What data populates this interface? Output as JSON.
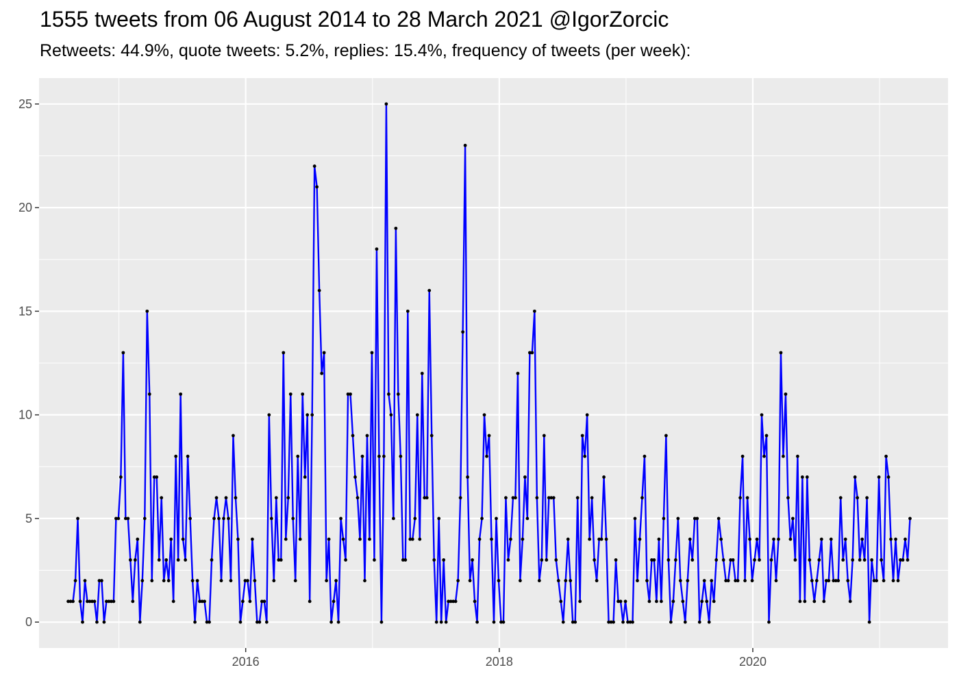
{
  "title": "1555 tweets from 06 August 2014 to 28 March 2021 @IgorZorcic",
  "subtitle": "Retweets: 44.9%, quote tweets: 5.2%, replies: 15.4%, frequency of tweets (per week):",
  "colors": {
    "panel": "#ebebeb",
    "grid": "#ffffff",
    "line": "#0000ff",
    "point": "#000000",
    "tick_text": "#4d4d4d"
  },
  "chart_data": {
    "type": "line",
    "title": "1555 tweets from 06 August 2014 to 28 March 2021 @IgorZorcic",
    "subtitle": "Retweets: 44.9%, quote tweets: 5.2%, replies: 15.4%, frequency of tweets (per week):",
    "xlabel": "",
    "ylabel": "",
    "xlim": [
      2014.37,
      2021.54
    ],
    "ylim": [
      -1.25,
      26.25
    ],
    "x_ticks": [
      2016,
      2018,
      2020
    ],
    "x_tick_labels": [
      "2016",
      "2018",
      "2020"
    ],
    "x_minor_ticks": [
      2015,
      2017,
      2019,
      2021
    ],
    "y_ticks": [
      0,
      5,
      10,
      15,
      20,
      25
    ],
    "y_tick_labels": [
      "0",
      "5",
      "10",
      "15",
      "20",
      "25"
    ],
    "grid": true,
    "x_start": 2014.6,
    "x_end": 2021.24,
    "series": [
      {
        "values": [
          1,
          1,
          1,
          2,
          5,
          1,
          0,
          2,
          1,
          1,
          1,
          1,
          0,
          2,
          2,
          0,
          1,
          1,
          1,
          1,
          5,
          5,
          7,
          13,
          5,
          5,
          3,
          1,
          3,
          4,
          0,
          2,
          5,
          15,
          11,
          2,
          7,
          7,
          3,
          6,
          2,
          3,
          2,
          4,
          1,
          8,
          3,
          11,
          4,
          3,
          8,
          5,
          2,
          0,
          2,
          1,
          1,
          1,
          0,
          0,
          3,
          5,
          6,
          5,
          2,
          5,
          6,
          5,
          2,
          9,
          6,
          4,
          0,
          1,
          2,
          2,
          1,
          4,
          2,
          0,
          0,
          1,
          1,
          0,
          10,
          5,
          2,
          6,
          3,
          3,
          13,
          4,
          6,
          11,
          5,
          2,
          8,
          4,
          11,
          7,
          10,
          1,
          10,
          22,
          21,
          16,
          12,
          13,
          2,
          4,
          0,
          1,
          2,
          0,
          5,
          4,
          3,
          11,
          11,
          9,
          7,
          6,
          4,
          8,
          2,
          9,
          4,
          13,
          3,
          18,
          8,
          0,
          8,
          25,
          11,
          10,
          5,
          19,
          11,
          8,
          3,
          3,
          15,
          4,
          4,
          5,
          10,
          4,
          12,
          6,
          6,
          16,
          9,
          3,
          0,
          5,
          0,
          3,
          0,
          1,
          1,
          1,
          1,
          2,
          6,
          14,
          23,
          7,
          2,
          3,
          1,
          0,
          4,
          5,
          10,
          8,
          9,
          4,
          0,
          5,
          2,
          0,
          0,
          6,
          3,
          4,
          6,
          6,
          12,
          2,
          4,
          7,
          5,
          13,
          13,
          15,
          6,
          2,
          3,
          9,
          3,
          6,
          6,
          6,
          3,
          2,
          1,
          0,
          2,
          4,
          2,
          0,
          0,
          6,
          1,
          9,
          8,
          10,
          4,
          6,
          3,
          2,
          4,
          4,
          7,
          4,
          0,
          0,
          0,
          3,
          1,
          1,
          0,
          1,
          0,
          0,
          0,
          5,
          2,
          4,
          6,
          8,
          2,
          1,
          3,
          3,
          1,
          4,
          1,
          5,
          9,
          3,
          0,
          1,
          3,
          5,
          2,
          1,
          0,
          2,
          4,
          3,
          5,
          5,
          0,
          1,
          2,
          1,
          0,
          2,
          1,
          3,
          5,
          4,
          3,
          2,
          2,
          3,
          3,
          2,
          2,
          6,
          8,
          2,
          6,
          4,
          2,
          3,
          4,
          3,
          10,
          8,
          9,
          0,
          3,
          4,
          2,
          4,
          13,
          8,
          11,
          6,
          4,
          5,
          3,
          8,
          1,
          7,
          1,
          7,
          3,
          2,
          1,
          2,
          3,
          4,
          1,
          2,
          2,
          4,
          2,
          2,
          2,
          6,
          3,
          4,
          2,
          1,
          3,
          7,
          6,
          3,
          4,
          3,
          6,
          0,
          3,
          2,
          2,
          7,
          3,
          2,
          8,
          7,
          4,
          2,
          4,
          2,
          3,
          3,
          4,
          3,
          5
        ]
      }
    ]
  }
}
